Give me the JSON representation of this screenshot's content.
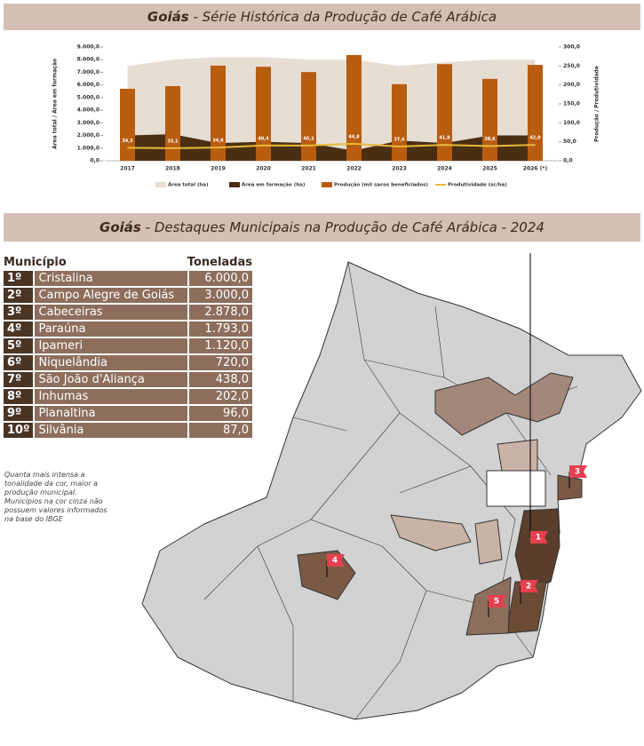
{
  "header_top": {
    "strong": "Goiás",
    "rest": "- Série Histórica da Produção de Café Arábica"
  },
  "chart_data": {
    "type": "combo",
    "categories": [
      "2017",
      "2018",
      "2019",
      "2020",
      "2021",
      "2022",
      "2023",
      "2024",
      "2025",
      "2026 (*)"
    ],
    "ylabel": "Área total / Área em formação",
    "y2label": "Produção / Produtividade",
    "ylim": [
      0,
      9000
    ],
    "yticks": [
      {
        "value": 0,
        "label": "0,0"
      },
      {
        "value": 1000,
        "label": "1.000,0"
      },
      {
        "value": 2000,
        "label": "2.000,0"
      },
      {
        "value": 3000,
        "label": "3.000,0"
      },
      {
        "value": 4000,
        "label": "4.000,0"
      },
      {
        "value": 5000,
        "label": "5.000,0"
      },
      {
        "value": 6000,
        "label": "6.000,0"
      },
      {
        "value": 7000,
        "label": "7.000,0"
      },
      {
        "value": 8000,
        "label": "8.000,0"
      },
      {
        "value": 9000,
        "label": "9.000,0"
      }
    ],
    "y2lim": [
      0,
      300
    ],
    "y2ticks": [
      {
        "value": 0,
        "label": "0,0"
      },
      {
        "value": 50,
        "label": "50,0"
      },
      {
        "value": 100,
        "label": "100,0"
      },
      {
        "value": 150,
        "label": "150,0"
      },
      {
        "value": 200,
        "label": "200,0"
      },
      {
        "value": 250,
        "label": "250,0"
      },
      {
        "value": 300,
        "label": "300,0"
      }
    ],
    "series": [
      {
        "name": "Área total (ha)",
        "type": "area",
        "color": "#e6ddd3",
        "values": [
          7500,
          8000,
          8200,
          8200,
          8000,
          8000,
          7500,
          7800,
          8000,
          8000
        ]
      },
      {
        "name": "Área em formação (ha)",
        "type": "area",
        "color": "#4a2e14",
        "values": [
          2000,
          2100,
          1400,
          1500,
          1400,
          800,
          1600,
          1400,
          2000,
          2000
        ]
      },
      {
        "name": "Produção (mil sacos beneficiados)",
        "type": "bar",
        "axis": "y2",
        "color": "#b85c10",
        "values": [
          190,
          197,
          251,
          248,
          234,
          279,
          202,
          255,
          216,
          253
        ]
      },
      {
        "name": "Produtividade (sc/ha)",
        "type": "line",
        "axis": "y2",
        "color": "#e8b93a",
        "values": [
          34.3,
          33.1,
          34.8,
          40.4,
          40.2,
          44.8,
          37.6,
          41.8,
          38.6,
          42.0
        ],
        "value_labels": [
          "34,3",
          "33,1",
          "34,8",
          "40,4",
          "40,2",
          "44,8",
          "37,6",
          "41,8",
          "38,6",
          "42,0"
        ]
      }
    ]
  },
  "header_bottom": {
    "strong": "Goiás",
    "rest": "- Destaques Municipais na Produção de Café Arábica - 2024"
  },
  "table": {
    "columns": [
      "Município",
      "Toneladas"
    ],
    "rows": [
      [
        "1º",
        "Cristalina",
        "6.000,0"
      ],
      [
        "2º",
        "Campo Alegre de Goiás",
        "3.000,0"
      ],
      [
        "3º",
        "Cabeceiras",
        "2.878,0"
      ],
      [
        "4º",
        "Paraúna",
        "1.793,0"
      ],
      [
        "5º",
        "Ipameri",
        "1.120,0"
      ],
      [
        "6º",
        "Niquelândia",
        "720,0"
      ],
      [
        "7º",
        "São João d'Aliança",
        "438,0"
      ],
      [
        "8º",
        "Inhumas",
        "202,0"
      ],
      [
        "9º",
        "Planaltina",
        "96,0"
      ],
      [
        "10º",
        "Silvânia",
        "87,0"
      ]
    ]
  },
  "note": "Quanta mais intensa a tonalidade da cor, maior a produção municipal. Municípios na cor cinza não possuem valores informados na base do IBGE",
  "map": {
    "markers": [
      "1",
      "2",
      "3",
      "4",
      "5"
    ]
  }
}
